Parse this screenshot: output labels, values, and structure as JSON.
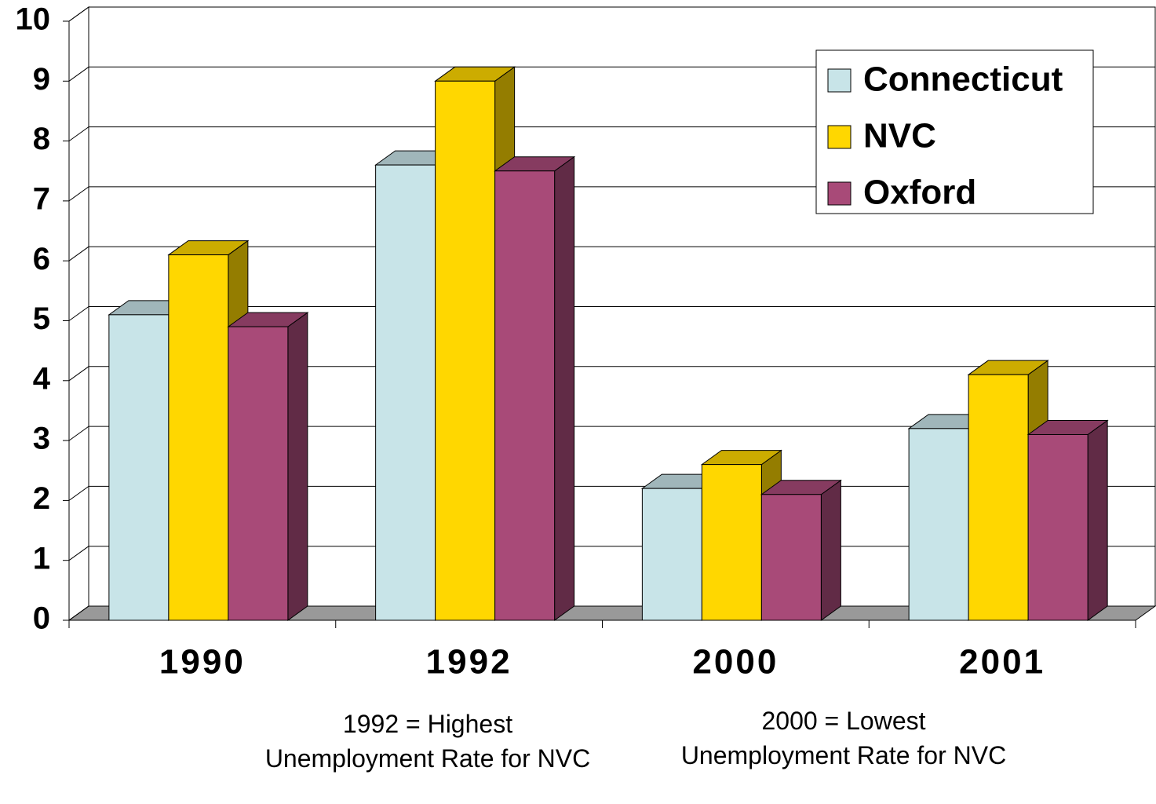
{
  "chart_data": {
    "type": "bar3d",
    "categories": [
      "1990",
      "1992",
      "2000",
      "2001"
    ],
    "series": [
      {
        "name": "Connecticut",
        "color": "#c8e4e8",
        "values": [
          5.1,
          7.6,
          2.2,
          3.2
        ]
      },
      {
        "name": "NVC",
        "color": "#ffd700",
        "values": [
          6.1,
          9.0,
          2.6,
          4.1
        ]
      },
      {
        "name": "Oxford",
        "color": "#a84a78",
        "values": [
          4.9,
          7.5,
          2.1,
          3.1
        ]
      }
    ],
    "ylim": [
      0,
      10
    ],
    "yticks": [
      0,
      1,
      2,
      3,
      4,
      5,
      6,
      7,
      8,
      9,
      10
    ],
    "grid": true,
    "legend": "upper right",
    "annotations": [
      "1992 = Highest Unemployment Rate for NVC",
      "2000 = Lowest Unemployment Rate for NVC"
    ]
  }
}
